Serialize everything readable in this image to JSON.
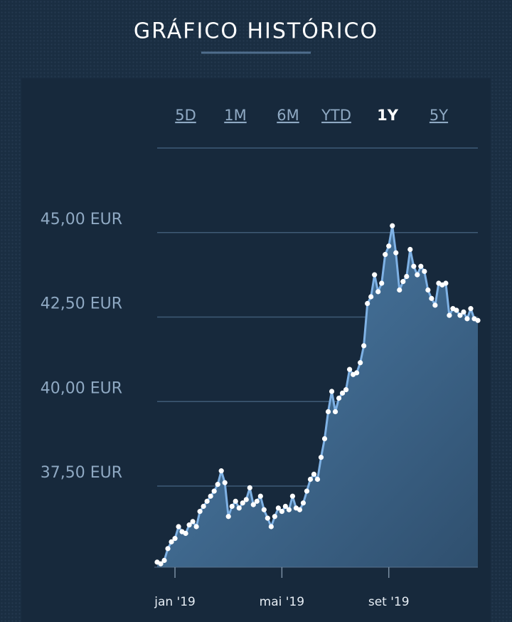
{
  "chart_data": {
    "type": "line",
    "title": "GRÁFICO HISTÓRICO",
    "range_buttons": [
      "5D",
      "1M",
      "6M",
      "YTD",
      "1Y",
      "5Y"
    ],
    "active_range": "1Y",
    "categories": [
      null,
      null,
      null,
      null,
      null,
      "jan '19",
      null,
      null,
      null,
      null,
      null,
      null,
      null,
      null,
      null,
      null,
      null,
      null,
      null,
      null,
      null,
      null,
      null,
      null,
      null,
      null,
      null,
      null,
      null,
      null,
      null,
      null,
      null,
      null,
      null,
      "mai '19",
      null,
      null,
      null,
      null,
      null,
      null,
      null,
      null,
      null,
      null,
      null,
      null,
      null,
      null,
      null,
      null,
      null,
      null,
      null,
      null,
      null,
      null,
      null,
      null,
      null,
      null,
      null,
      null,
      null,
      "set '19",
      null,
      null,
      null,
      null,
      null,
      null,
      null,
      null,
      null,
      null,
      null,
      null,
      null,
      null,
      null,
      null,
      null,
      null,
      null,
      null,
      null,
      null,
      null,
      null,
      null
    ],
    "series": [
      {
        "name": "EUR",
        "color": "#7fb2e5",
        "values": [
          35.25,
          35.2,
          35.3,
          35.65,
          35.85,
          35.95,
          36.3,
          36.15,
          36.1,
          36.35,
          36.45,
          36.3,
          36.75,
          36.9,
          37.05,
          37.2,
          37.35,
          37.55,
          37.95,
          37.6,
          36.6,
          36.9,
          37.05,
          36.85,
          37.0,
          37.1,
          37.45,
          36.95,
          37.05,
          37.2,
          36.8,
          36.55,
          36.3,
          36.6,
          36.85,
          36.75,
          36.9,
          36.8,
          37.2,
          36.85,
          36.8,
          37.0,
          37.35,
          37.7,
          37.85,
          37.7,
          38.35,
          38.9,
          39.7,
          40.3,
          39.7,
          40.1,
          40.25,
          40.35,
          40.95,
          40.8,
          40.85,
          41.15,
          41.65,
          42.9,
          43.1,
          43.75,
          43.25,
          43.5,
          44.35,
          44.6,
          45.2,
          44.4,
          43.3,
          43.55,
          43.7,
          44.5,
          44.0,
          43.75,
          44.0,
          43.85,
          43.3,
          43.05,
          42.85,
          43.5,
          43.45,
          43.5,
          42.55,
          42.75,
          42.7,
          42.55,
          42.65,
          42.45,
          42.75,
          42.45,
          42.4
        ]
      }
    ],
    "ylim": [
      35.1,
      47.5
    ],
    "yticks": [
      {
        "value": 37.5,
        "label": "37,50 EUR"
      },
      {
        "value": 40,
        "label": "40,00 EUR"
      },
      {
        "value": 42.5,
        "label": "42,50 EUR"
      },
      {
        "value": 45,
        "label": "45,00 EUR"
      }
    ],
    "grid": true
  }
}
